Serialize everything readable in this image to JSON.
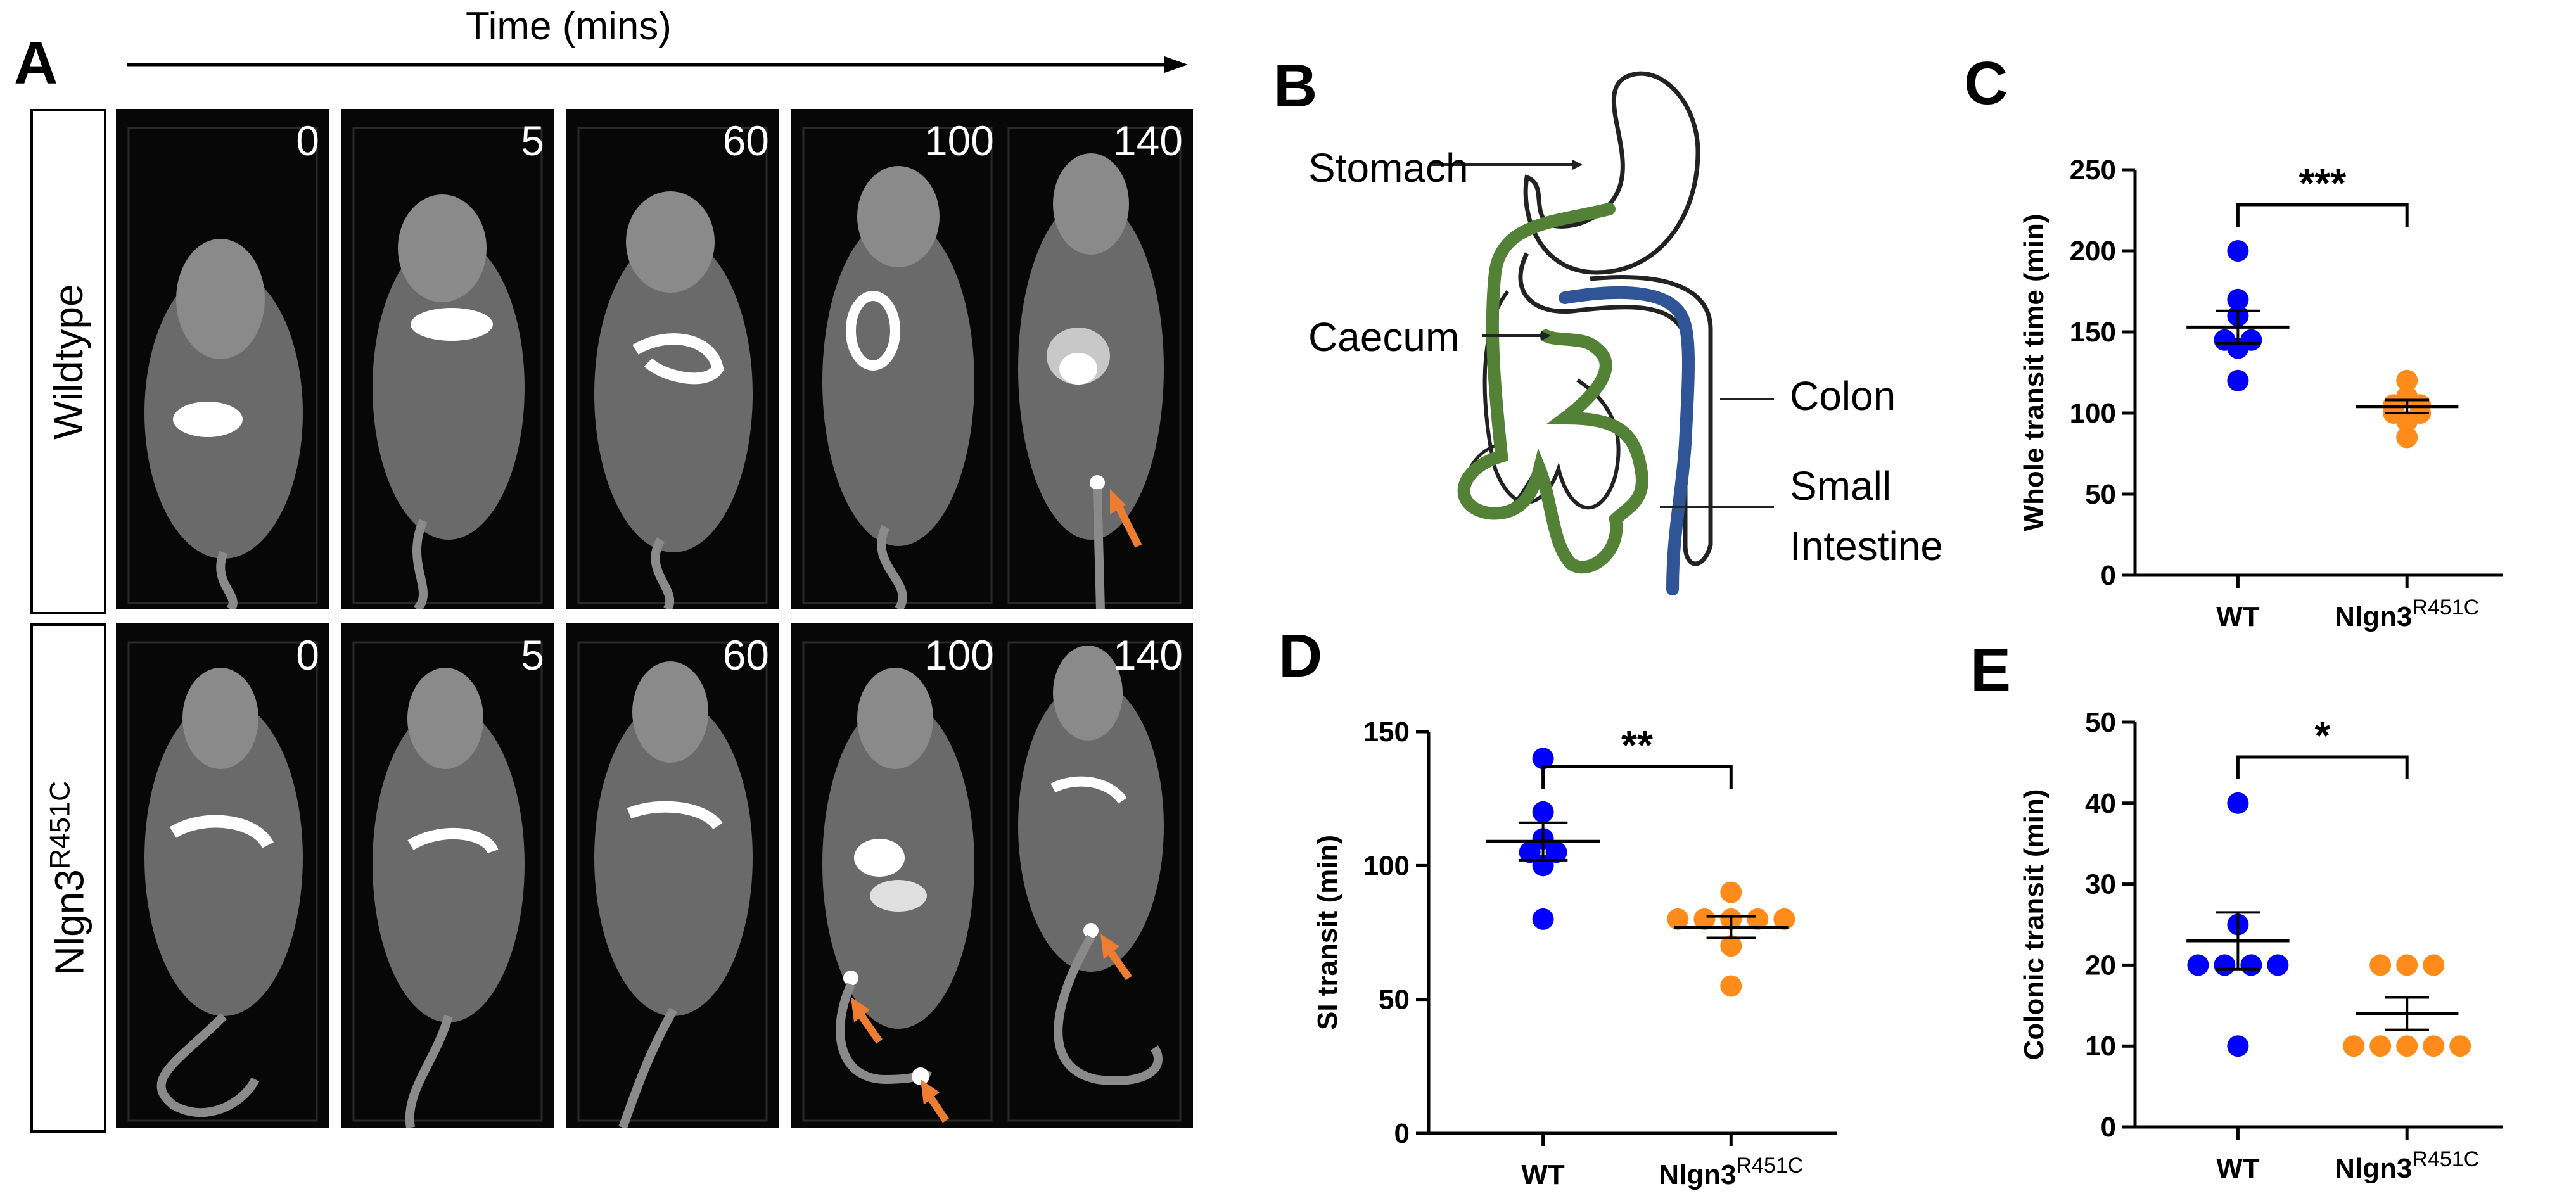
{
  "panels": {
    "a": "A",
    "b": "B",
    "c": "C",
    "d": "D",
    "e": "E"
  },
  "panelA": {
    "axis_title": "Time (mins)",
    "row_labels": [
      {
        "main": "Wildtype",
        "sup": ""
      },
      {
        "main": "Nlgn3",
        "sup": "R451C"
      }
    ],
    "timepoints": [
      "0",
      "5",
      "60",
      "100",
      "140"
    ],
    "arrow_color": "#ED7D31"
  },
  "panelB": {
    "labels": {
      "stomach": "Stomach",
      "caecum": "Caecum",
      "colon": "Colon",
      "small1": "Small",
      "small2": "Intestine"
    },
    "colors": {
      "small_intestine": "#538135",
      "colon": "#2F5597"
    }
  },
  "colors": {
    "wt": "#0000FF",
    "mut": "#FF8C1A"
  },
  "chart_data": [
    {
      "id": "C",
      "type": "scatter",
      "ylabel": "Whole transit time (min)",
      "ylim": [
        0,
        250
      ],
      "yticks": [
        0,
        50,
        100,
        150,
        200,
        250
      ],
      "categories": [
        {
          "main": "WT",
          "sup": ""
        },
        {
          "main": "Nlgn3",
          "sup": "R451C"
        }
      ],
      "series": [
        {
          "values": [
            200,
            170,
            160,
            145,
            145,
            140,
            120
          ],
          "mean": 153,
          "sem": 10
        },
        {
          "values": [
            120,
            110,
            105,
            105,
            100,
            100,
            95,
            85
          ],
          "mean": 104,
          "sem": 4
        }
      ],
      "significance": "***"
    },
    {
      "id": "D",
      "type": "scatter",
      "ylabel": "SI transit (min)",
      "ylim": [
        0,
        150
      ],
      "yticks": [
        0,
        50,
        100,
        150
      ],
      "categories": [
        {
          "main": "WT",
          "sup": ""
        },
        {
          "main": "Nlgn3",
          "sup": "R451C"
        }
      ],
      "series": [
        {
          "values": [
            140,
            120,
            110,
            105,
            105,
            100,
            80
          ],
          "mean": 109,
          "sem": 7
        },
        {
          "values": [
            90,
            80,
            80,
            80,
            80,
            80,
            70,
            55
          ],
          "mean": 77,
          "sem": 4
        }
      ],
      "significance": "**"
    },
    {
      "id": "E",
      "type": "scatter",
      "ylabel": "Colonic transit (min)",
      "ylim": [
        0,
        50
      ],
      "yticks": [
        0,
        10,
        20,
        30,
        40,
        50
      ],
      "categories": [
        {
          "main": "WT",
          "sup": ""
        },
        {
          "main": "Nlgn3",
          "sup": "R451C"
        }
      ],
      "series": [
        {
          "values": [
            40,
            25,
            20,
            20,
            20,
            20,
            10
          ],
          "mean": 23,
          "sem": 3.5
        },
        {
          "values": [
            20,
            20,
            20,
            10,
            10,
            10,
            10,
            10
          ],
          "mean": 14,
          "sem": 2
        }
      ],
      "significance": "*"
    }
  ]
}
